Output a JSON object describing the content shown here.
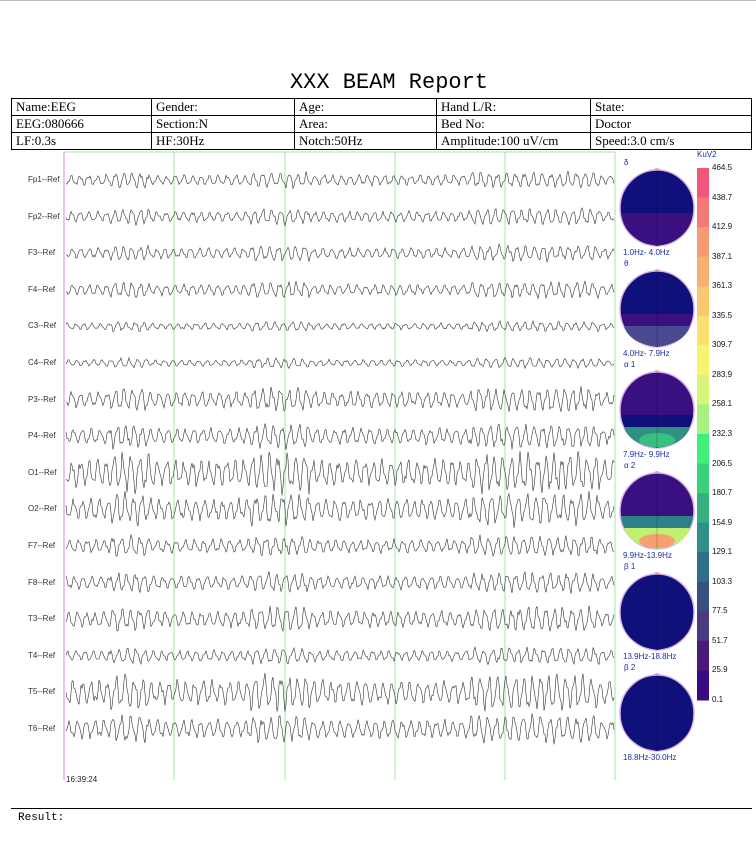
{
  "title": "XXX BEAM Report",
  "info_rows": [
    [
      "Name:EEG",
      "Gender:",
      "Age:",
      "Hand L/R:",
      "State:"
    ],
    [
      "EEG:080666",
      "Section:N",
      "Area:",
      "Bed No:",
      "Doctor"
    ],
    [
      "LF:0.3s",
      "HF:30Hz",
      "Notch:50Hz",
      "Amplitude:100 uV/cm",
      "Speed:3.0 cm/s"
    ]
  ],
  "channels": [
    "Fp1--Ref",
    "Fp2--Ref",
    "F3--Ref",
    "F4--Ref",
    "C3--Ref",
    "C4--Ref",
    "P3--Ref",
    "P4--Ref",
    "O1--Ref",
    "O2--Ref",
    "F7--Ref",
    "F8--Ref",
    "T3--Ref",
    "T4--Ref",
    "T5--Ref",
    "T6--Ref"
  ],
  "time_label": "16:39:24",
  "colorbar": {
    "unit": "KuV2",
    "labels": [
      "464.5",
      "438.7",
      "412.9",
      "387.1",
      "361.3",
      "335.5",
      "309.7",
      "283.9",
      "258.1",
      "232.3",
      "206.5",
      "180.7",
      "154.9",
      "129.1",
      "103.3",
      "77.5",
      "51.7",
      "25.9",
      "0.1"
    ],
    "colors": [
      "#f2557a",
      "#f47a78",
      "#f69a74",
      "#f8b070",
      "#fac870",
      "#fbe070",
      "#f5f570",
      "#d8f57a",
      "#a8f080",
      "#3ef07a",
      "#38d07a",
      "#36b080",
      "#2e9088",
      "#2e7088",
      "#385080",
      "#4a3a80",
      "#4a1a78",
      "#3a0a80",
      "#08087a"
    ]
  },
  "topomaps": [
    {
      "symbol": "δ",
      "band": "1.0Hz- 4.0Hz"
    },
    {
      "symbol": "θ",
      "band": "4.0Hz- 7.9Hz"
    },
    {
      "symbol": "α 1",
      "band": "7.9Hz- 9.9Hz"
    },
    {
      "symbol": "α 2",
      "band": "9.9Hz-13.9Hz"
    },
    {
      "symbol": "β 1",
      "band": "13.9Hz-18.8Hz"
    },
    {
      "symbol": "β 2",
      "band": "18.8Hz-30.0Hz"
    }
  ],
  "result_label": "Result:"
}
